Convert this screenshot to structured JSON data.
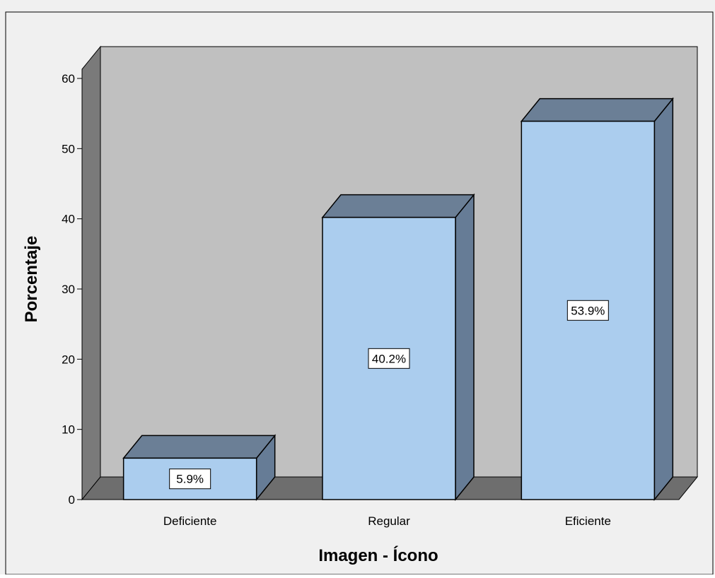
{
  "chart_data": {
    "type": "bar",
    "categories": [
      "Deficiente",
      "Regular",
      "Eficiente"
    ],
    "values": [
      5.9,
      40.2,
      53.9
    ],
    "data_labels": [
      "5.9%",
      "40.2%",
      "53.9%"
    ],
    "title": "",
    "xlabel": "Imagen - Ícono",
    "ylabel": "Porcentaje",
    "ylim": [
      0,
      60
    ],
    "yticks": [
      "0",
      "10",
      "20",
      "30",
      "40",
      "50",
      "60"
    ],
    "grid": false,
    "legend": "none",
    "style": "3d",
    "colors": {
      "background": "#f0f0f0",
      "back_wall": "#c0c0c0",
      "side_wall": "#7a7a7a",
      "floor": "#6e6e6e",
      "bar_front": "#abcdee",
      "bar_top": "#6b7f96",
      "bar_side": "#667c96",
      "outline": "#000000"
    }
  }
}
